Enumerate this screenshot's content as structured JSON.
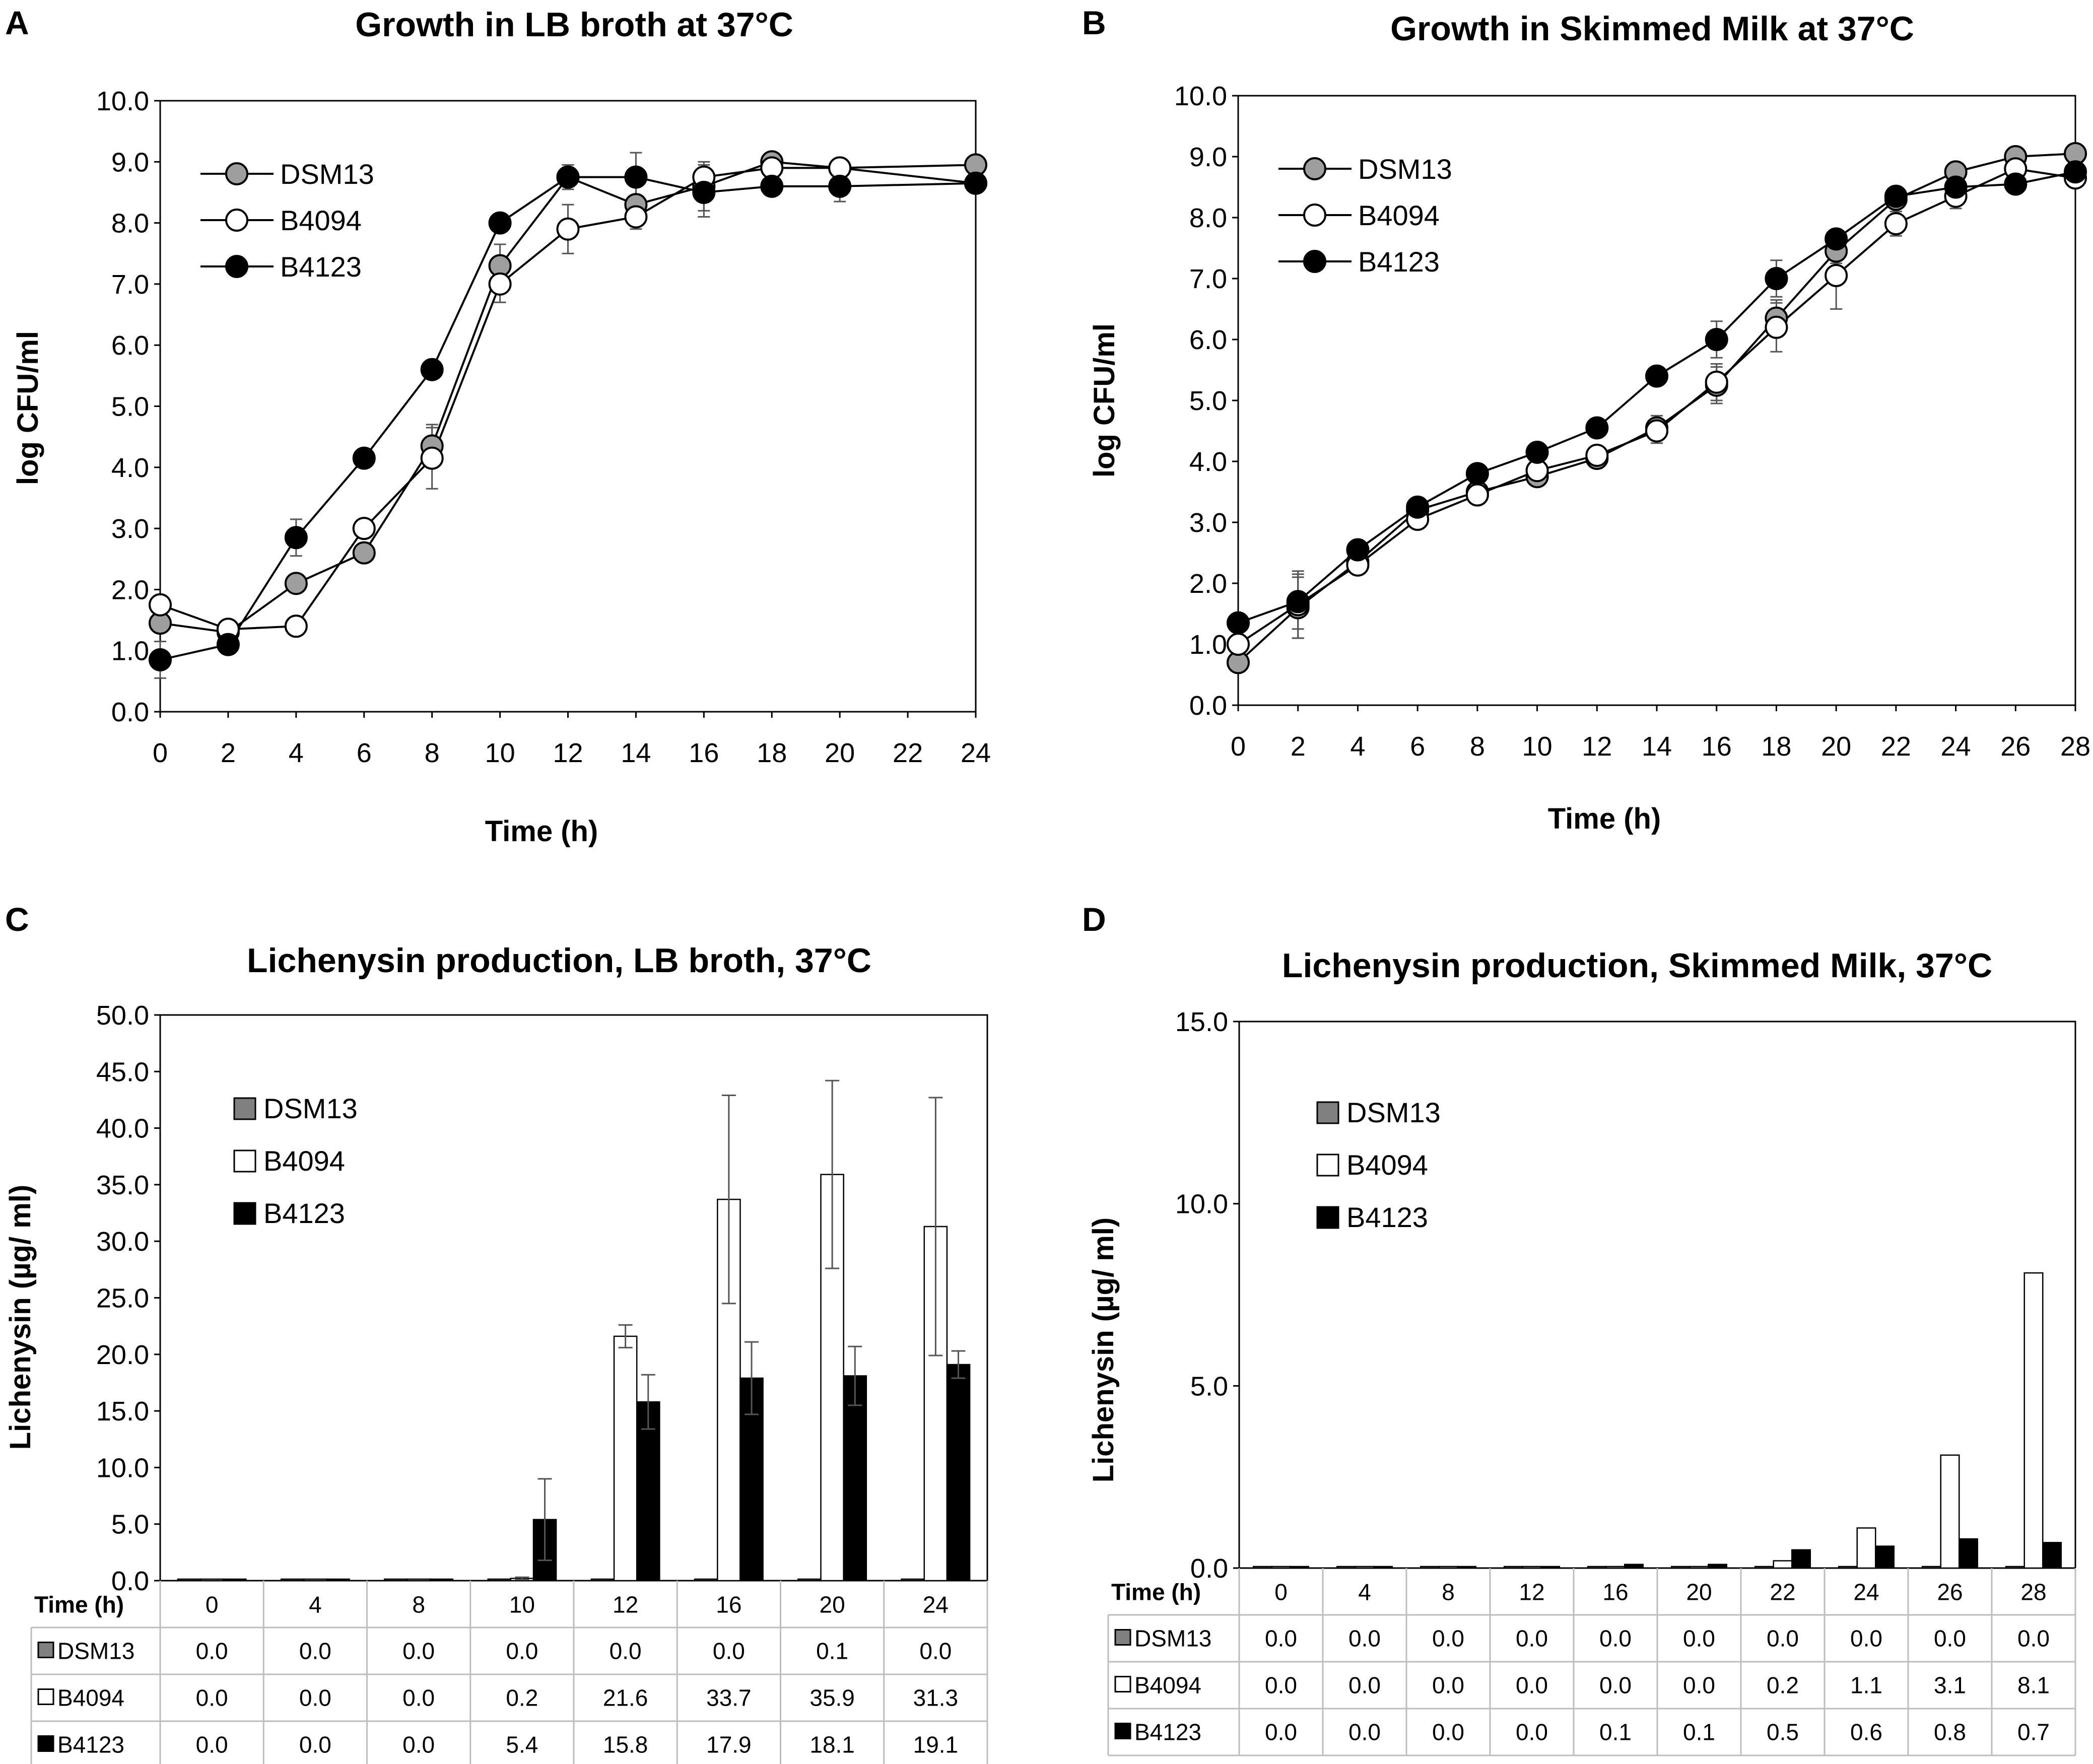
{
  "chart_data": [
    {
      "panel": "A",
      "type": "line",
      "title": "Growth in LB broth at 37°C",
      "xlabel": "Time (h)",
      "ylabel": "log CFU/ml",
      "xlim": [
        0,
        24
      ],
      "ylim": [
        0,
        10
      ],
      "x_ticks": [
        "0",
        "2",
        "4",
        "6",
        "8",
        "10",
        "12",
        "14",
        "16",
        "18",
        "20",
        "22",
        "24"
      ],
      "y_ticks": [
        "0.0",
        "1.0",
        "2.0",
        "3.0",
        "4.0",
        "5.0",
        "6.0",
        "7.0",
        "8.0",
        "9.0",
        "10.0"
      ],
      "legend_position": "top-left",
      "series": [
        {
          "name": "DSM13",
          "color": "#9e9e9e",
          "x": [
            0,
            2,
            4,
            6,
            8,
            10,
            12,
            14,
            16,
            18,
            20,
            24
          ],
          "y": [
            1.45,
            1.3,
            2.1,
            2.6,
            4.35,
            7.3,
            8.75,
            8.3,
            8.6,
            9.0,
            8.9,
            8.95
          ],
          "err": [
            0.15,
            0.1,
            0.1,
            0.15,
            0.35,
            0.35,
            0.2,
            0.3,
            0.4,
            0.15,
            0.15,
            0.1
          ]
        },
        {
          "name": "B4094",
          "color": "#ffffff",
          "x": [
            0,
            2,
            4,
            6,
            8,
            10,
            12,
            14,
            16,
            18,
            20,
            24
          ],
          "y": [
            1.75,
            1.35,
            1.4,
            3.0,
            4.15,
            7.0,
            7.9,
            8.1,
            8.75,
            8.9,
            8.9,
            8.65
          ],
          "err": [
            0.1,
            0.1,
            0.1,
            0.15,
            0.5,
            0.3,
            0.4,
            0.2,
            0.2,
            0.15,
            0.15,
            0.1
          ]
        },
        {
          "name": "B4123",
          "color": "#000000",
          "x": [
            0,
            2,
            4,
            6,
            8,
            10,
            12,
            14,
            16,
            18,
            20,
            24
          ],
          "y": [
            0.85,
            1.1,
            2.85,
            4.15,
            5.6,
            8.0,
            8.75,
            8.75,
            8.5,
            8.6,
            8.6,
            8.65
          ],
          "err": [
            0.3,
            0.1,
            0.3,
            0.1,
            0.1,
            0.15,
            0.15,
            0.4,
            0.4,
            0.1,
            0.25,
            0.1
          ]
        }
      ]
    },
    {
      "panel": "B",
      "type": "line",
      "title": "Growth in Skimmed Milk at 37°C",
      "xlabel": "Time (h)",
      "ylabel": "log CFU/ml",
      "xlim": [
        0,
        28
      ],
      "ylim": [
        0,
        10
      ],
      "x_ticks": [
        "0",
        "2",
        "4",
        "6",
        "8",
        "10",
        "12",
        "14",
        "16",
        "18",
        "20",
        "22",
        "24",
        "26",
        "28"
      ],
      "y_ticks": [
        "0.0",
        "1.0",
        "2.0",
        "3.0",
        "4.0",
        "5.0",
        "6.0",
        "7.0",
        "8.0",
        "9.0",
        "10.0"
      ],
      "legend_position": "top-left",
      "series": [
        {
          "name": "DSM13",
          "color": "#9e9e9e",
          "x": [
            0,
            2,
            4,
            6,
            8,
            10,
            12,
            14,
            16,
            18,
            20,
            22,
            24,
            26,
            28
          ],
          "y": [
            0.7,
            1.6,
            2.35,
            3.2,
            3.5,
            3.75,
            4.05,
            4.55,
            5.25,
            6.35,
            7.45,
            8.3,
            8.75,
            9.0,
            9.05
          ],
          "err": [
            0.1,
            0.5,
            0.1,
            0.1,
            0.1,
            0.1,
            0.1,
            0.2,
            0.3,
            0.3,
            0.2,
            0.2,
            0.1,
            0.1,
            0.1
          ]
        },
        {
          "name": "B4094",
          "color": "#ffffff",
          "x": [
            0,
            2,
            4,
            6,
            8,
            10,
            12,
            14,
            16,
            18,
            20,
            22,
            24,
            26,
            28
          ],
          "y": [
            1.0,
            1.65,
            2.3,
            3.05,
            3.45,
            3.85,
            4.1,
            4.5,
            5.3,
            6.2,
            7.05,
            7.9,
            8.35,
            8.8,
            8.65
          ],
          "err": [
            0.1,
            0.55,
            0.1,
            0.1,
            0.1,
            0.1,
            0.1,
            0.2,
            0.3,
            0.4,
            0.55,
            0.2,
            0.2,
            0.1,
            0.1
          ]
        },
        {
          "name": "B4123",
          "color": "#000000",
          "x": [
            0,
            2,
            4,
            6,
            8,
            10,
            12,
            14,
            16,
            18,
            20,
            22,
            24,
            26,
            28
          ],
          "y": [
            1.35,
            1.7,
            2.55,
            3.25,
            3.8,
            4.15,
            4.55,
            5.4,
            6.0,
            7.0,
            7.65,
            8.35,
            8.5,
            8.55,
            8.75
          ],
          "err": [
            0.1,
            0.45,
            0.1,
            0.1,
            0.1,
            0.1,
            0.1,
            0.1,
            0.3,
            0.3,
            0.1,
            0.1,
            0.2,
            0.1,
            0.1
          ]
        }
      ]
    },
    {
      "panel": "C",
      "type": "bar",
      "title": "Lichenysin production, LB broth, 37°C",
      "ylabel": "Lichenysin (µg/ ml)",
      "ylim": [
        0,
        50
      ],
      "y_ticks": [
        "0.0",
        "5.0",
        "10.0",
        "15.0",
        "20.0",
        "25.0",
        "30.0",
        "35.0",
        "40.0",
        "45.0",
        "50.0"
      ],
      "legend_position": "top-left",
      "table_header": "Time (h)",
      "categories": [
        "0",
        "4",
        "8",
        "10",
        "12",
        "16",
        "20",
        "24"
      ],
      "series": [
        {
          "name": "DSM13",
          "color": "#808080",
          "values": [
            0.0,
            0.0,
            0.0,
            0.0,
            0.0,
            0.0,
            0.1,
            0.0
          ],
          "labels": [
            "0.0",
            "0.0",
            "0.0",
            "0.0",
            "0.0",
            "0.0",
            "0.1",
            "0.0"
          ],
          "err": [
            0,
            0,
            0,
            0,
            0,
            0,
            0,
            0
          ]
        },
        {
          "name": "B4094",
          "color": "#ffffff",
          "values": [
            0.0,
            0.0,
            0.0,
            0.2,
            21.6,
            33.7,
            35.9,
            31.3
          ],
          "labels": [
            "0.0",
            "0.0",
            "0.0",
            "0.2",
            "21.6",
            "33.7",
            "35.9",
            "31.3"
          ],
          "err": [
            0,
            0,
            0,
            0.1,
            1.0,
            9.2,
            8.3,
            11.4
          ]
        },
        {
          "name": "B4123",
          "color": "#000000",
          "values": [
            0.0,
            0.0,
            0.0,
            5.4,
            15.8,
            17.9,
            18.1,
            19.1
          ],
          "labels": [
            "0.0",
            "0.0",
            "0.0",
            "5.4",
            "15.8",
            "17.9",
            "18.1",
            "19.1"
          ],
          "err": [
            0,
            0,
            0,
            3.6,
            2.4,
            3.2,
            2.6,
            1.2
          ]
        }
      ]
    },
    {
      "panel": "D",
      "type": "bar",
      "title": "Lichenysin production, Skimmed Milk, 37°C",
      "ylabel": "Lichenysin (µg/ ml)",
      "ylim": [
        0,
        15
      ],
      "y_ticks": [
        "0.0",
        "5.0",
        "10.0",
        "15.0"
      ],
      "legend_position": "top-left",
      "table_header": "Time (h)",
      "categories": [
        "0",
        "4",
        "8",
        "12",
        "16",
        "20",
        "22",
        "24",
        "26",
        "28"
      ],
      "series": [
        {
          "name": "DSM13",
          "color": "#808080",
          "values": [
            0.0,
            0.0,
            0.0,
            0.0,
            0.0,
            0.0,
            0.0,
            0.0,
            0.0,
            0.0
          ],
          "labels": [
            "0.0",
            "0.0",
            "0.0",
            "0.0",
            "0.0",
            "0.0",
            "0.0",
            "0.0",
            "0.0",
            "0.0"
          ]
        },
        {
          "name": "B4094",
          "color": "#ffffff",
          "values": [
            0.0,
            0.0,
            0.0,
            0.0,
            0.0,
            0.0,
            0.2,
            1.1,
            3.1,
            8.1
          ],
          "labels": [
            "0.0",
            "0.0",
            "0.0",
            "0.0",
            "0.0",
            "0.0",
            "0.2",
            "1.1",
            "3.1",
            "8.1"
          ]
        },
        {
          "name": "B4123",
          "color": "#000000",
          "values": [
            0.0,
            0.0,
            0.0,
            0.0,
            0.1,
            0.1,
            0.5,
            0.6,
            0.8,
            0.7
          ],
          "labels": [
            "0.0",
            "0.0",
            "0.0",
            "0.0",
            "0.1",
            "0.1",
            "0.5",
            "0.6",
            "0.8",
            "0.7"
          ]
        }
      ]
    }
  ]
}
